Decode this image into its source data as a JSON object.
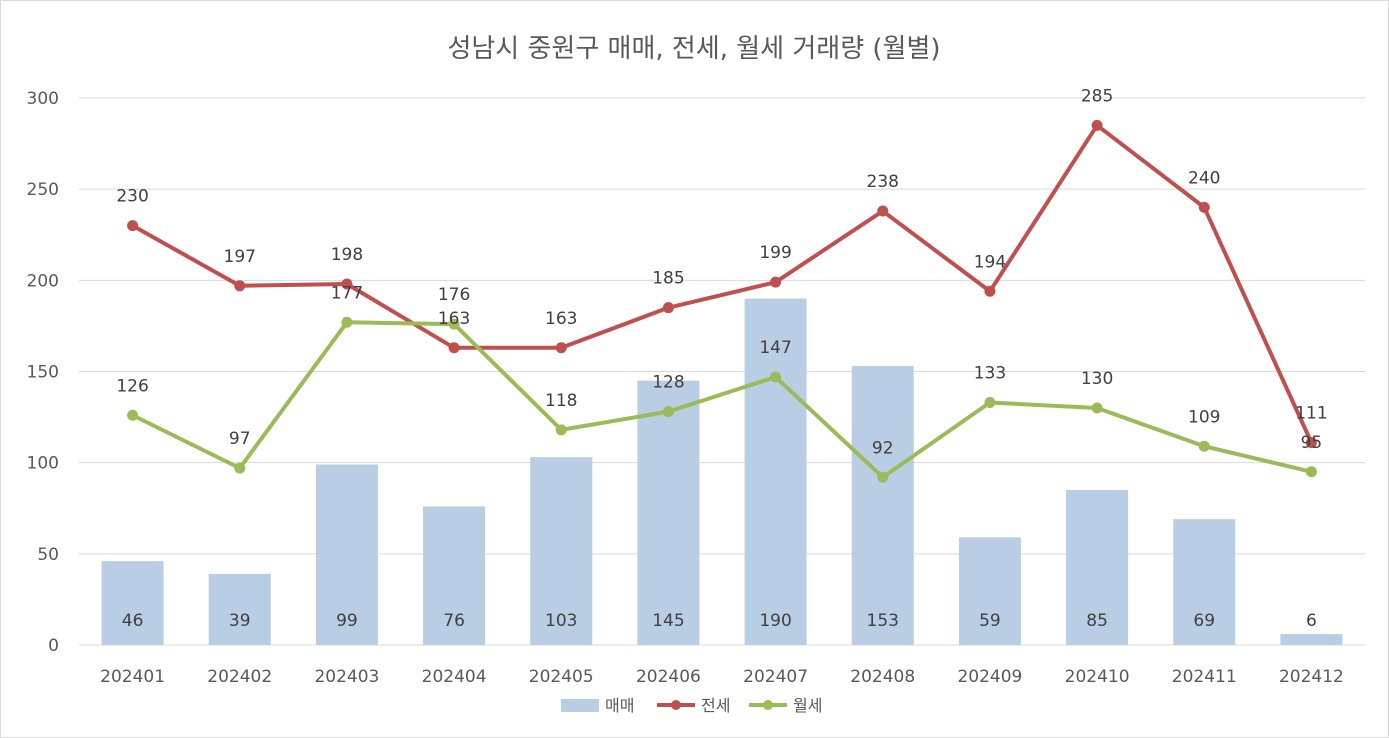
{
  "chart_data": {
    "type": "bar",
    "title": "성남시 중원구 매매, 전세, 월세 거래량 (월별)",
    "categories": [
      "202401",
      "202402",
      "202403",
      "202404",
      "202405",
      "202406",
      "202407",
      "202408",
      "202409",
      "202410",
      "202411",
      "202412"
    ],
    "ylim": [
      0,
      300
    ],
    "yticks": [
      0,
      50,
      100,
      150,
      200,
      250,
      300
    ],
    "grid": true,
    "legend_position": "bottom",
    "series": [
      {
        "name": "매매",
        "type": "bar",
        "color": "#b9cde5",
        "values": [
          46,
          39,
          99,
          76,
          103,
          145,
          190,
          153,
          59,
          85,
          69,
          6
        ]
      },
      {
        "name": "전세",
        "type": "line",
        "color": "#c0504d",
        "values": [
          230,
          197,
          198,
          163,
          163,
          185,
          199,
          238,
          194,
          285,
          240,
          111
        ]
      },
      {
        "name": "월세",
        "type": "line",
        "color": "#9bbb59",
        "values": [
          126,
          97,
          177,
          176,
          118,
          128,
          147,
          92,
          133,
          130,
          109,
          95
        ]
      }
    ]
  }
}
